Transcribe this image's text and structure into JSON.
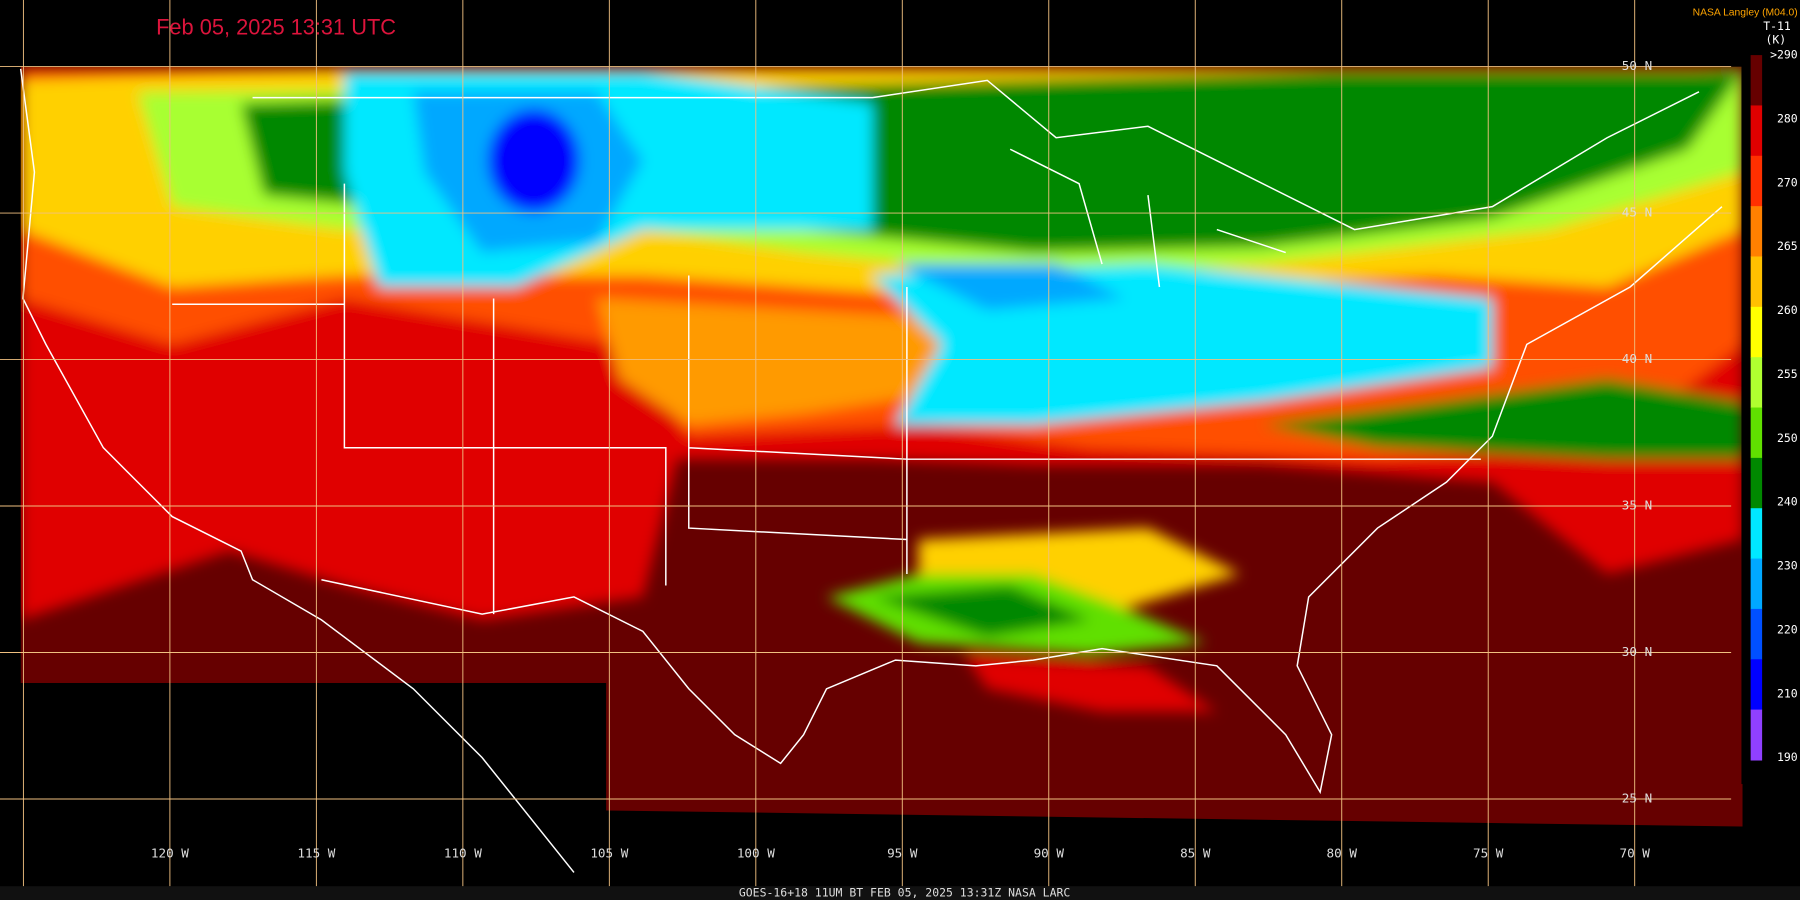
{
  "header": {
    "timestamp": "Feb 05, 2025 13:31 UTC",
    "credit": "NASA Langley (M04.0)"
  },
  "legend": {
    "product": "T-11",
    "unit": "(K)",
    "labels": [
      ">290",
      "280",
      "270",
      "265",
      "260",
      "255",
      "250",
      "240",
      "230",
      "220",
      "210",
      "190"
    ],
    "colors": [
      "#660000",
      "#e00000",
      "#ff3000",
      "#ff8000",
      "#ffc000",
      "#ffff00",
      "#b0ff30",
      "#60e000",
      "#008800",
      "#00e8ff",
      "#00a8ff",
      "#0050ff",
      "#0000ff",
      "#9040ff"
    ]
  },
  "grid": {
    "latitudes": [
      "50 N",
      "45 N",
      "40 N",
      "35 N",
      "30 N",
      "25 N"
    ],
    "longitudes": [
      "120 W",
      "115 W",
      "110 W",
      "105 W",
      "100 W",
      "95 W",
      "90 W",
      "85 W",
      "80 W",
      "75 W",
      "70 W"
    ]
  },
  "footer": {
    "caption": "GOES-16+18  11UM BT   FEB 05, 2025 13:31Z   NASA LARC"
  }
}
